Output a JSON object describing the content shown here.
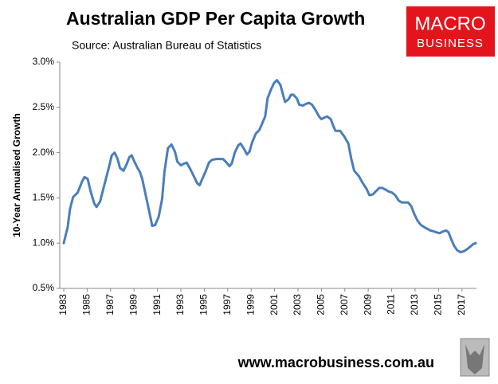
{
  "chart_data": {
    "type": "line",
    "title": "Australian GDP Per Capita Growth",
    "subtitle": "Source: Australian Bureau of Statistics",
    "y_label": "10-Year Annualised Growth",
    "color": "#4a7ebb",
    "x": [
      1983.0,
      1983.34,
      1983.54,
      1983.8,
      1984.2,
      1984.56,
      1984.77,
      1985.04,
      1985.3,
      1985.6,
      1985.8,
      1986.1,
      1986.3,
      1986.6,
      1986.9,
      1987.1,
      1987.35,
      1987.6,
      1987.8,
      1988.1,
      1988.4,
      1988.6,
      1988.8,
      1989.0,
      1989.3,
      1989.5,
      1989.7,
      1990.0,
      1990.3,
      1990.55,
      1990.8,
      1991.1,
      1991.4,
      1991.6,
      1991.9,
      1992.2,
      1992.5,
      1992.7,
      1993.0,
      1993.3,
      1993.5,
      1993.8,
      1994.1,
      1994.4,
      1994.6,
      1994.8,
      1995.1,
      1995.4,
      1995.65,
      1996.0,
      1996.3,
      1996.6,
      1996.9,
      1997.15,
      1997.35,
      1997.6,
      1997.9,
      1998.1,
      1998.4,
      1998.65,
      1998.85,
      1999.1,
      1999.4,
      1999.7,
      1999.9,
      2000.2,
      2000.4,
      2000.7,
      2000.96,
      2001.2,
      2001.5,
      2001.7,
      2001.9,
      2002.2,
      2002.4,
      2002.6,
      2002.9,
      2003.1,
      2003.4,
      2003.7,
      2003.95,
      2004.2,
      2004.5,
      2004.8,
      2005.0,
      2005.3,
      2005.5,
      2005.8,
      2006.0,
      2006.2,
      2006.6,
      2006.95,
      2007.3,
      2007.55,
      2007.8,
      2008.2,
      2008.5,
      2008.85,
      2009.1,
      2009.4,
      2009.7,
      2009.95,
      2010.2,
      2010.5,
      2010.75,
      2011.0,
      2011.3,
      2011.6,
      2011.85,
      2012.1,
      2012.4,
      2012.66,
      2012.9,
      2013.2,
      2013.5,
      2013.75,
      2014.0,
      2014.3,
      2014.6,
      2014.8,
      2015.1,
      2015.4,
      2015.65,
      2015.85,
      2016.06,
      2016.33,
      2016.6,
      2016.9,
      2017.15,
      2017.4,
      2017.7,
      2017.97,
      2018.17
    ],
    "values": [
      1.0,
      1.18,
      1.38,
      1.51,
      1.56,
      1.68,
      1.73,
      1.71,
      1.57,
      1.44,
      1.4,
      1.46,
      1.56,
      1.71,
      1.86,
      1.97,
      2.0,
      1.93,
      1.83,
      1.8,
      1.88,
      1.95,
      1.97,
      1.91,
      1.83,
      1.79,
      1.71,
      1.53,
      1.35,
      1.19,
      1.2,
      1.29,
      1.49,
      1.79,
      2.05,
      2.09,
      2.01,
      1.9,
      1.86,
      1.88,
      1.89,
      1.82,
      1.74,
      1.66,
      1.64,
      1.7,
      1.79,
      1.89,
      1.92,
      1.93,
      1.93,
      1.93,
      1.89,
      1.85,
      1.88,
      2.0,
      2.08,
      2.1,
      2.04,
      1.98,
      2.01,
      2.12,
      2.21,
      2.25,
      2.31,
      2.4,
      2.6,
      2.7,
      2.77,
      2.8,
      2.75,
      2.65,
      2.56,
      2.59,
      2.64,
      2.64,
      2.6,
      2.53,
      2.52,
      2.54,
      2.55,
      2.53,
      2.47,
      2.4,
      2.37,
      2.39,
      2.4,
      2.37,
      2.3,
      2.24,
      2.24,
      2.18,
      2.1,
      1.93,
      1.8,
      1.74,
      1.67,
      1.6,
      1.53,
      1.54,
      1.58,
      1.61,
      1.61,
      1.59,
      1.57,
      1.56,
      1.53,
      1.47,
      1.45,
      1.45,
      1.45,
      1.41,
      1.33,
      1.25,
      1.2,
      1.18,
      1.16,
      1.14,
      1.13,
      1.12,
      1.11,
      1.13,
      1.14,
      1.12,
      1.05,
      0.97,
      0.92,
      0.9,
      0.91,
      0.93,
      0.96,
      0.99,
      1.0
    ],
    "xlim": [
      1982.66,
      2018.24
    ],
    "xticks": [
      1983,
      1985,
      1987,
      1989,
      1991,
      1993,
      1995,
      1997,
      1999,
      2001,
      2003,
      2005,
      2007,
      2009,
      2011,
      2013,
      2015,
      2017
    ],
    "ylim": [
      0.5,
      3.0
    ],
    "yticks": [
      {
        "value": 0.5,
        "label": "0.5%"
      },
      {
        "value": 1.0,
        "label": "1.0%"
      },
      {
        "value": 1.5,
        "label": "1.5%"
      },
      {
        "value": 2.0,
        "label": "2.0%"
      },
      {
        "value": 2.5,
        "label": "2.5%"
      },
      {
        "value": 3.0,
        "label": "3.0%"
      }
    ],
    "grid": false
  },
  "branding": {
    "logo_top": "MACRO",
    "logo_bottom": "BUSINESS",
    "url": "www.macrobusiness.com.au"
  }
}
